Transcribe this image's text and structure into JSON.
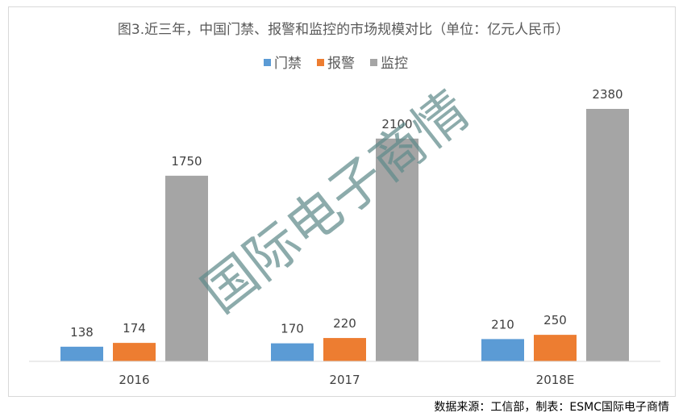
{
  "chart_data": {
    "type": "bar",
    "title": "图3.近三年，中国门禁、报警和监控的市场规模对比（单位：亿元人民币）",
    "categories": [
      "2016",
      "2017",
      "2018E"
    ],
    "series": [
      {
        "name": "门禁",
        "values": [
          138,
          170,
          210
        ],
        "color": "#5b9bd5"
      },
      {
        "name": "报警",
        "values": [
          174,
          220,
          250
        ],
        "color": "#ed7d31"
      },
      {
        "name": "监控",
        "values": [
          1750,
          2100,
          2380
        ],
        "color": "#a5a5a5"
      }
    ],
    "ylim": [
      0,
      2500
    ],
    "legend_position": "top-center",
    "grid": false,
    "data_labels": true
  },
  "watermark": {
    "text": "国际电子商情"
  },
  "source": {
    "text": "数据来源：工信部，制表：ESMC国际电子商情"
  }
}
